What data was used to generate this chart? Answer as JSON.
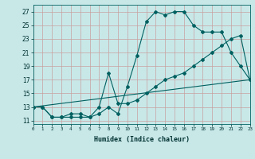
{
  "xlabel": "Humidex (Indice chaleur)",
  "bg_color": "#c8e8e8",
  "grid_color": "#c8a0a0",
  "line_color": "#006060",
  "line1_x": [
    0,
    1,
    2,
    3,
    4,
    5,
    6,
    7,
    8,
    9,
    10,
    11,
    12,
    13,
    14,
    15,
    16,
    17,
    18,
    19,
    20,
    21,
    22,
    23
  ],
  "line1_y": [
    13,
    13,
    11.5,
    11.5,
    11.5,
    11.5,
    11.5,
    12,
    13,
    12,
    16,
    20.5,
    25.5,
    27,
    26.5,
    27,
    27,
    25,
    24,
    24,
    24,
    21,
    19,
    17
  ],
  "line2_x": [
    0,
    1,
    2,
    3,
    4,
    5,
    6,
    7,
    8,
    9,
    10,
    11,
    12,
    13,
    14,
    15,
    16,
    17,
    18,
    19,
    20,
    21,
    22,
    23
  ],
  "line2_y": [
    13,
    13,
    11.5,
    11.5,
    12,
    12,
    11.5,
    13,
    18,
    13.5,
    13.5,
    14,
    15,
    16,
    17,
    17.5,
    18,
    19,
    20,
    21,
    22,
    23,
    23.5,
    17
  ],
  "line3_x": [
    0,
    23
  ],
  "line3_y": [
    13,
    17
  ],
  "xlim": [
    0,
    23
  ],
  "ylim": [
    10.5,
    28
  ],
  "yticks": [
    11,
    13,
    15,
    17,
    19,
    21,
    23,
    25,
    27
  ],
  "xticks": [
    0,
    1,
    2,
    3,
    4,
    5,
    6,
    7,
    8,
    9,
    10,
    11,
    12,
    13,
    14,
    15,
    16,
    17,
    18,
    19,
    20,
    21,
    22,
    23
  ]
}
